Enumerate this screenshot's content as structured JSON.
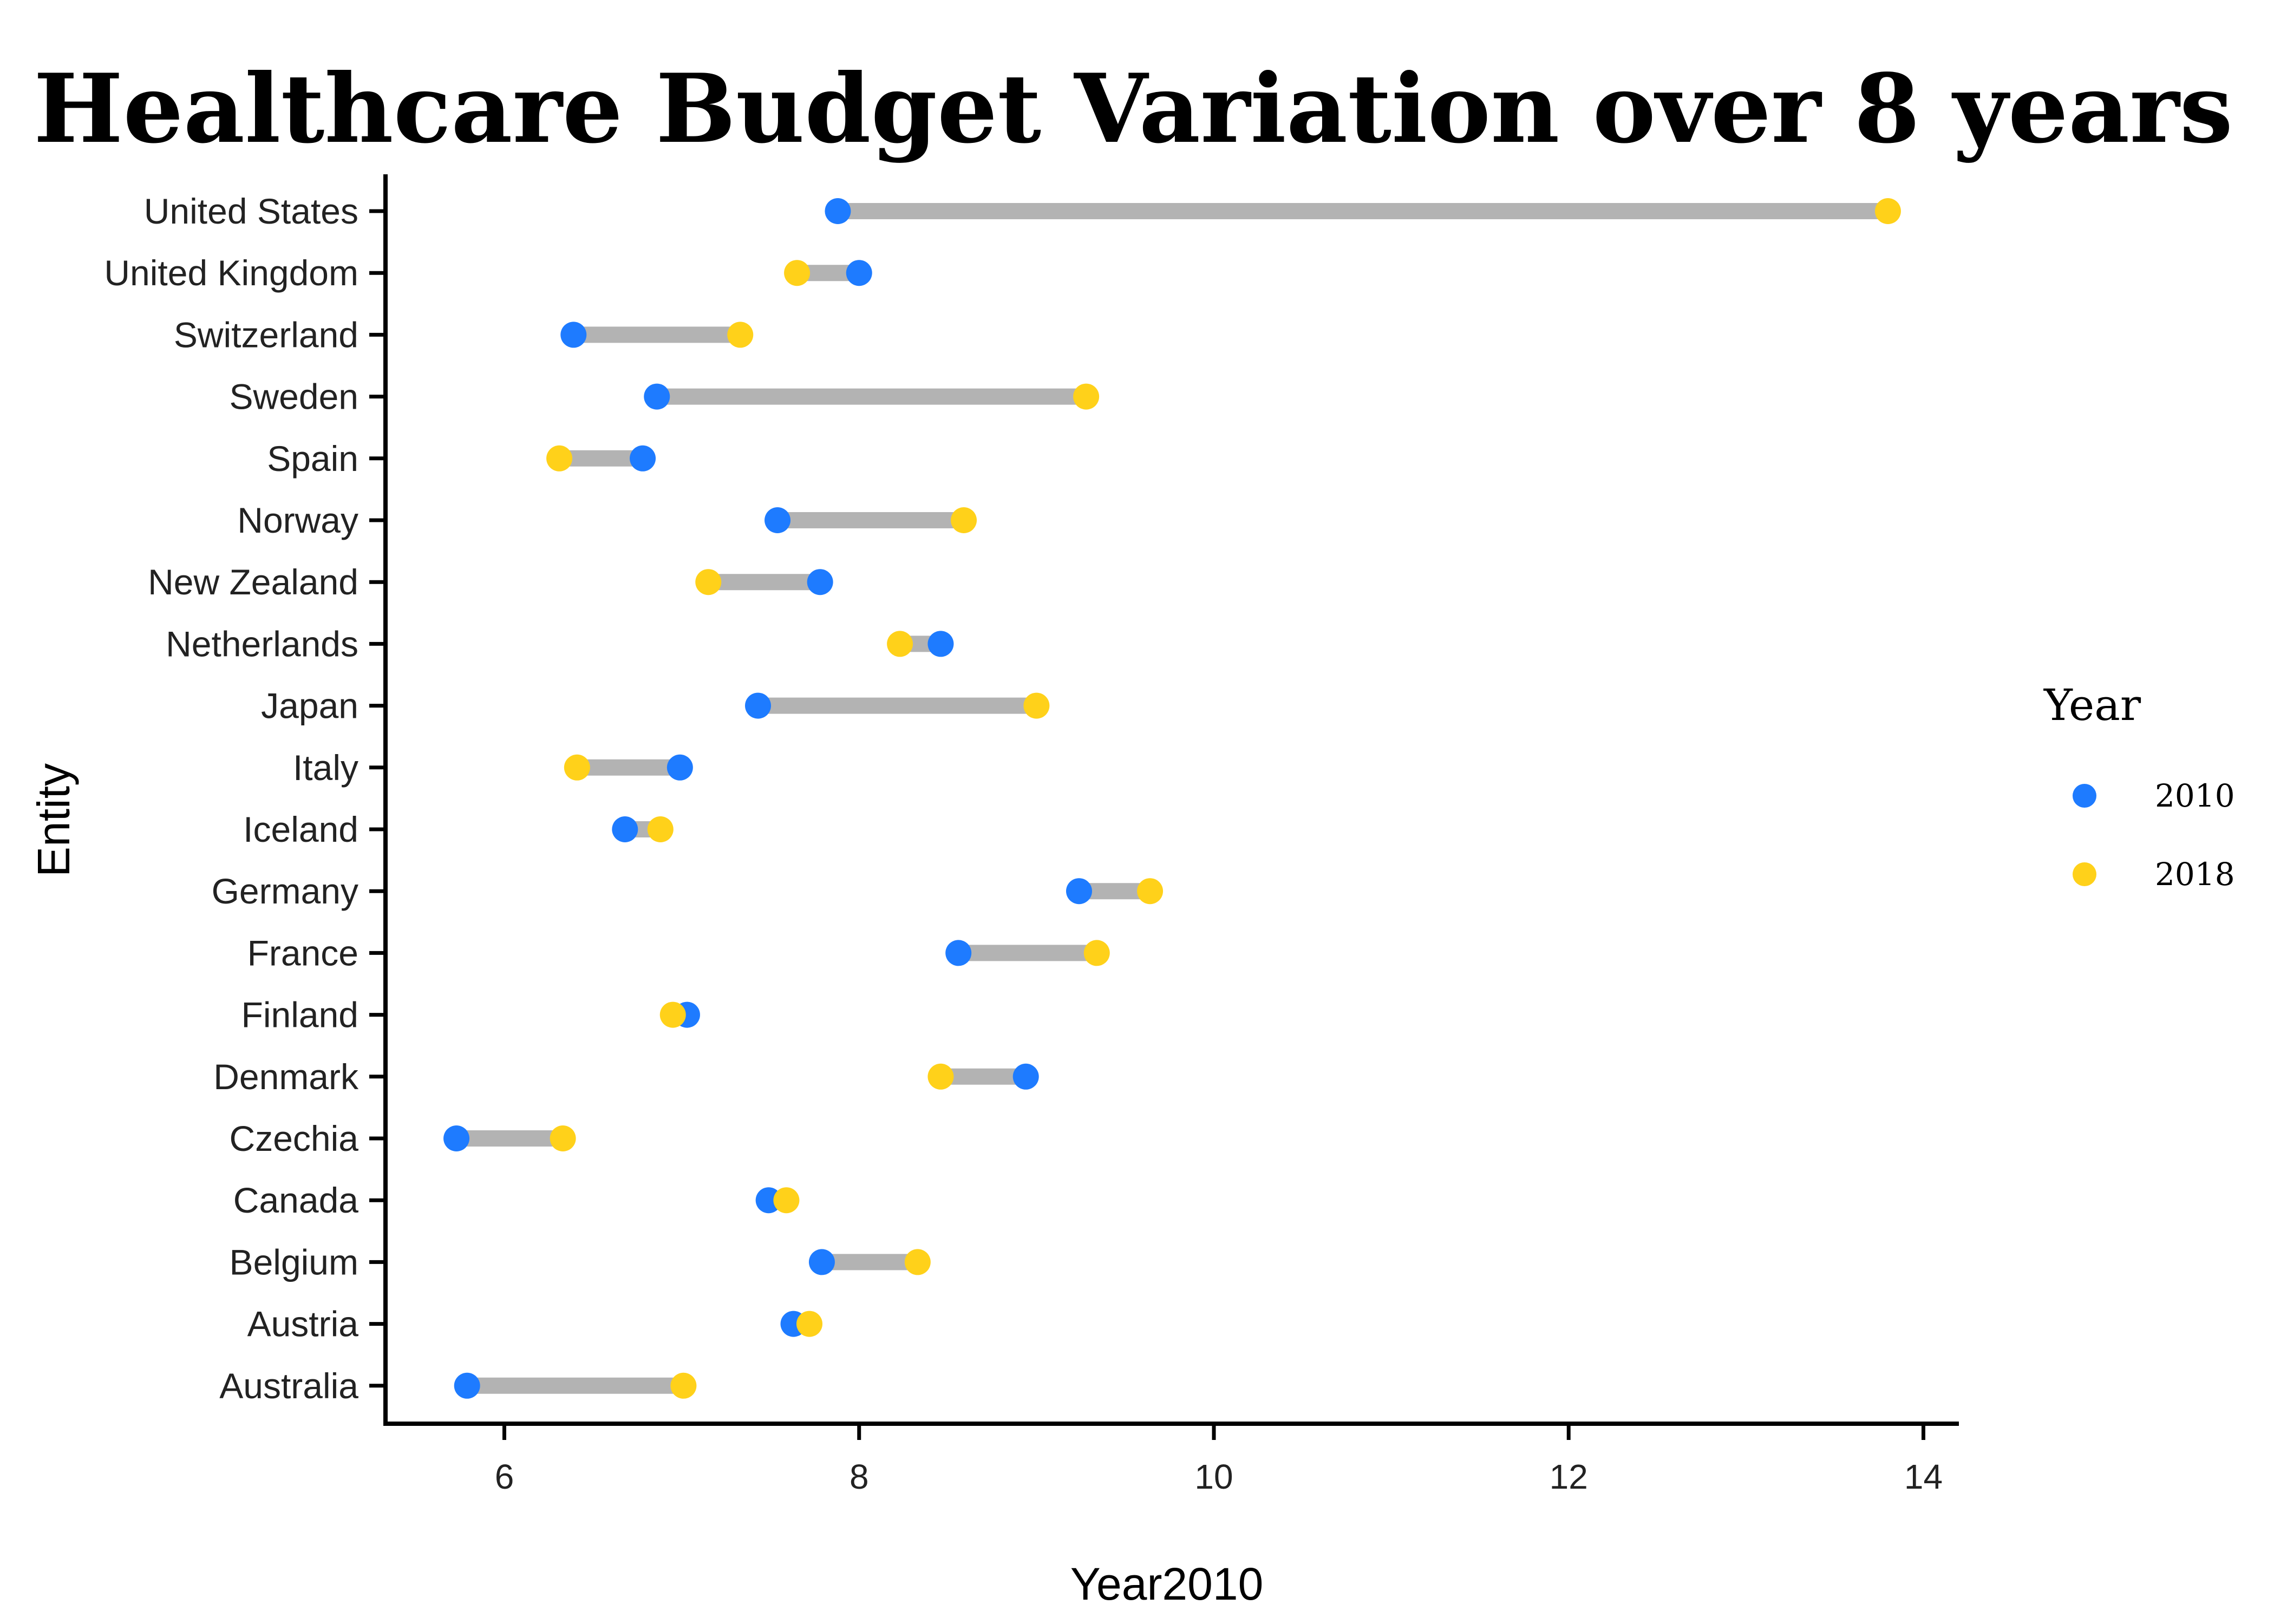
{
  "chart_data": {
    "type": "dumbbell",
    "title": "Healthcare Budget Variation over 8 years",
    "xlabel": "Year2010",
    "ylabel": "Entity",
    "xlim": [
      5.33,
      14.2
    ],
    "x_ticks": [
      "6",
      "8",
      "10",
      "12",
      "14"
    ],
    "grid": false,
    "legend": {
      "title": "Year",
      "placement": "right",
      "entries": [
        {
          "label": "2010",
          "color": "#1E7BFF"
        },
        {
          "label": "2018",
          "color": "#FFD11A"
        }
      ]
    },
    "connector_color": "#B3B3B3",
    "entities": [
      {
        "name": "United States",
        "y2010": 7.88,
        "y2018": 13.8
      },
      {
        "name": "United Kingdom",
        "y2010": 8.0,
        "y2018": 7.65
      },
      {
        "name": "Switzerland",
        "y2010": 6.39,
        "y2018": 7.33
      },
      {
        "name": "Sweden",
        "y2010": 6.86,
        "y2018": 9.28
      },
      {
        "name": "Spain",
        "y2010": 6.78,
        "y2018": 6.31
      },
      {
        "name": "Norway",
        "y2010": 7.54,
        "y2018": 8.59
      },
      {
        "name": "New Zealand",
        "y2010": 7.78,
        "y2018": 7.15
      },
      {
        "name": "Netherlands",
        "y2010": 8.46,
        "y2018": 8.23
      },
      {
        "name": "Japan",
        "y2010": 7.43,
        "y2018": 9.0
      },
      {
        "name": "Italy",
        "y2010": 6.99,
        "y2018": 6.41
      },
      {
        "name": "Iceland",
        "y2010": 6.68,
        "y2018": 6.88
      },
      {
        "name": "Germany",
        "y2010": 9.24,
        "y2018": 9.64
      },
      {
        "name": "France",
        "y2010": 8.56,
        "y2018": 9.34
      },
      {
        "name": "Finland",
        "y2010": 7.03,
        "y2018": 6.95
      },
      {
        "name": "Denmark",
        "y2010": 8.94,
        "y2018": 8.46
      },
      {
        "name": "Czechia",
        "y2010": 5.73,
        "y2018": 6.33
      },
      {
        "name": "Canada",
        "y2010": 7.49,
        "y2018": 7.59
      },
      {
        "name": "Belgium",
        "y2010": 7.79,
        "y2018": 8.33
      },
      {
        "name": "Austria",
        "y2010": 7.63,
        "y2018": 7.72
      },
      {
        "name": "Australia",
        "y2010": 5.79,
        "y2018": 7.01
      }
    ]
  }
}
